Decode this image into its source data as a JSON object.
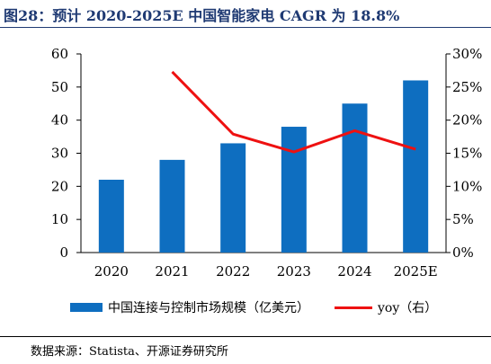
{
  "figure": {
    "title": "图28：预计 2020-2025E 中国智能家电 CAGR 为 18.8%",
    "source": "数据来源：Statista、开源证券研究所"
  },
  "chart_data": {
    "type": "bar",
    "categories": [
      "2020",
      "2021",
      "2022",
      "2023",
      "2024",
      "2025E"
    ],
    "series": [
      {
        "name": "中国连接与控制市场规模（亿美元）",
        "type": "bar",
        "axis": "left",
        "color": "#0e6ec0",
        "values": [
          22,
          28,
          33,
          38,
          45,
          52
        ]
      },
      {
        "name": "yoy（右）",
        "type": "line",
        "axis": "right",
        "color": "#ee1111",
        "values": [
          null,
          27.3,
          17.9,
          15.2,
          18.4,
          15.6
        ]
      }
    ],
    "ylim_left": [
      0,
      60
    ],
    "yticks_left": [
      "0",
      "10",
      "20",
      "30",
      "40",
      "50",
      "60"
    ],
    "ylim_right": [
      0,
      30
    ],
    "yticks_right": [
      "0%",
      "5%",
      "10%",
      "15%",
      "20%",
      "25%",
      "30%"
    ],
    "grid": false,
    "legend_position": "bottom"
  }
}
